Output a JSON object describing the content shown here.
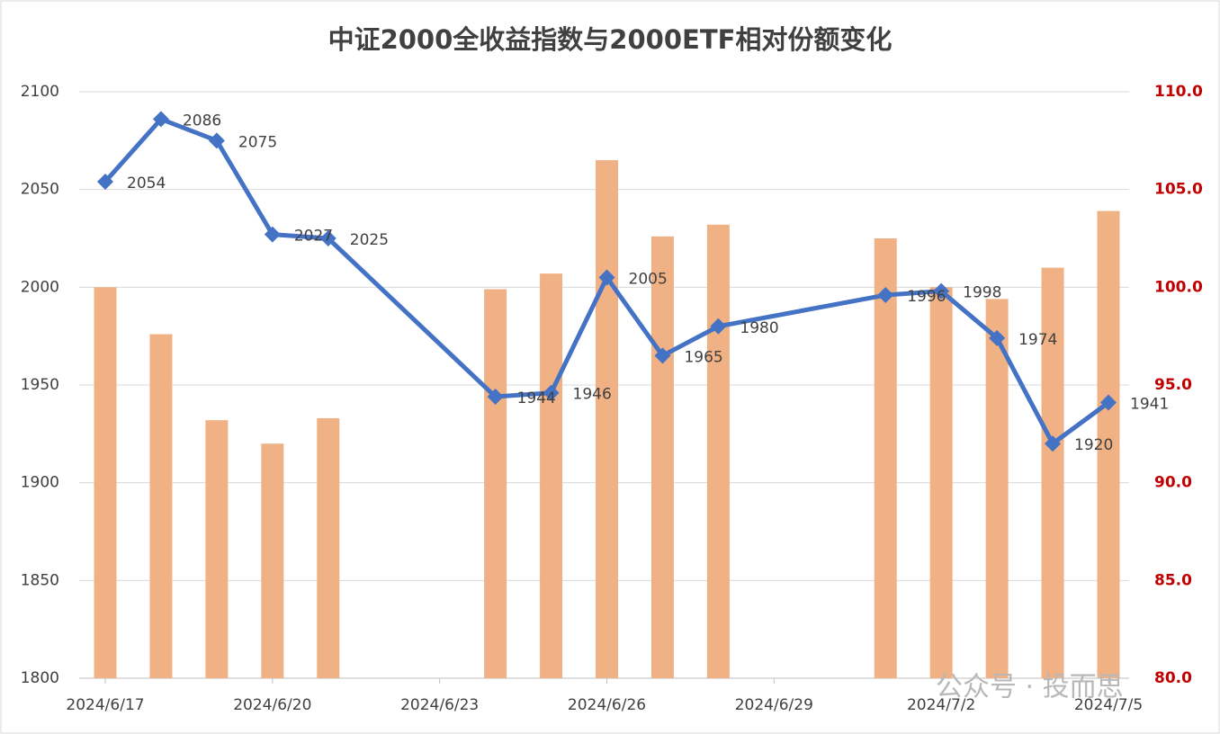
{
  "chart_data": {
    "type": "bar-line",
    "title": "中证2000全收益指数与2000ETF相对份额变化",
    "watermark": "公众号 · 投而思",
    "x": [
      "2024/6/17",
      "2024/6/18",
      "2024/6/19",
      "2024/6/20",
      "2024/6/21",
      "2024/6/24",
      "2024/6/25",
      "2024/6/26",
      "2024/6/27",
      "2024/6/28",
      "2024/7/1",
      "2024/7/2",
      "2024/7/3",
      "2024/7/4",
      "2024/7/5"
    ],
    "xlim": [
      "2024/6/17",
      "2024/7/5"
    ],
    "xticks": [
      "2024/6/17",
      "2024/6/20",
      "2024/6/23",
      "2024/6/26",
      "2024/6/29",
      "2024/7/2",
      "2024/7/5"
    ],
    "ylim": [
      1800,
      2100
    ],
    "yticks": [
      1800,
      1850,
      1900,
      1950,
      2000,
      2050,
      2100
    ],
    "y2lim": [
      80,
      110
    ],
    "y2ticks": [
      {
        "value": 80,
        "label": "80.0"
      },
      {
        "value": 85,
        "label": "85.0"
      },
      {
        "value": 90,
        "label": "90.0"
      },
      {
        "value": 95,
        "label": "95.0"
      },
      {
        "value": 100,
        "label": "100.0"
      },
      {
        "value": 105,
        "label": "105.0"
      },
      {
        "value": 110,
        "label": "110.0"
      }
    ],
    "grid": true,
    "series": [
      {
        "type": "bar",
        "axis": "y2",
        "color": "#f0b184",
        "values": [
          100.0,
          97.6,
          93.2,
          92.0,
          93.3,
          99.9,
          100.7,
          106.5,
          102.6,
          103.2,
          102.5,
          100.0,
          99.4,
          101.0,
          103.9
        ]
      },
      {
        "type": "line",
        "axis": "y",
        "color": "#4472c4",
        "values": [
          2054,
          2086,
          2075,
          2027,
          2025,
          1944,
          1946,
          2005,
          1965,
          1980,
          1996,
          1998,
          1974,
          1920,
          1941
        ]
      }
    ]
  }
}
